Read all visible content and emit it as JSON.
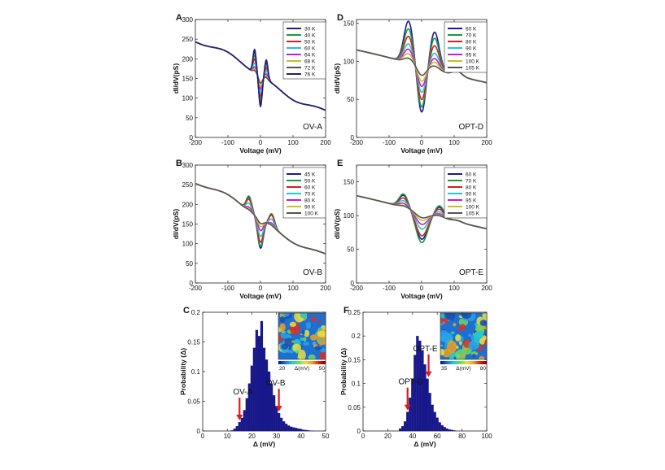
{
  "figure": {
    "title": ""
  },
  "colors": {
    "series8": [
      "#1a1aa0",
      "#1a9a3a",
      "#d81e1e",
      "#1ec8d8",
      "#c81ec8",
      "#c8c020",
      "#555555",
      "#20207a"
    ],
    "hist": "#18188a",
    "arrow": "#d81e1e"
  },
  "chart_data": [
    {
      "id": "A",
      "type": "line",
      "letter": "A",
      "name_label": "OV-A",
      "xlabel": "Voltage (mV)",
      "ylabel": "dI/dV(pS)",
      "xlim": [
        -200,
        200
      ],
      "ylim": [
        0,
        300
      ],
      "xticks": [
        "-200",
        "-100",
        "0",
        "100",
        "200"
      ],
      "yticks": [
        "0",
        "50",
        "100",
        "150",
        "200",
        "250",
        "300"
      ],
      "legend": [
        "30 K",
        "40 K",
        "50 K",
        "60 K",
        "64 K",
        "68 K",
        "72 K",
        "76 K"
      ],
      "model": {
        "y0": 262,
        "y1": 50,
        "k": 0.012,
        "wiggle": 4,
        "peakL": [
          55,
          45,
          35,
          25,
          15,
          10,
          6,
          60
        ],
        "peakR": [
          45,
          38,
          30,
          22,
          14,
          8,
          5,
          50
        ],
        "dip": [
          72,
          62,
          52,
          42,
          33,
          25,
          18,
          78
        ],
        "pw": 7,
        "pos": 18,
        "dw": 7,
        "hump": 0
      }
    },
    {
      "id": "B",
      "type": "line",
      "letter": "B",
      "name_label": "OV-B",
      "xlabel": "Voltage (mV)",
      "ylabel": "dI/dV(pS)",
      "xlim": [
        -200,
        200
      ],
      "ylim": [
        0,
        300
      ],
      "xticks": [
        "-200",
        "-100",
        "0",
        "100",
        "200"
      ],
      "yticks": [
        "0",
        "50",
        "100",
        "150",
        "200",
        "250",
        "300"
      ],
      "legend": [
        "45 K",
        "50 K",
        "60 K",
        "70 K",
        "80 K",
        "90 K",
        "100 K"
      ],
      "model": {
        "y0": 272,
        "y1": 55,
        "k": 0.012,
        "wiggle": 3,
        "peakL": [
          35,
          38,
          30,
          20,
          10,
          5,
          3
        ],
        "peakR": [
          30,
          32,
          28,
          18,
          8,
          4,
          2
        ],
        "dip": [
          75,
          70,
          60,
          45,
          30,
          20,
          12
        ],
        "pw": 12,
        "pos": 35,
        "dw": 12,
        "hump": 0
      }
    },
    {
      "id": "D",
      "type": "line",
      "letter": "D",
      "name_label": "OPT-D",
      "xlabel": "Voltage (mV)",
      "ylabel": "dI/dV(pS)",
      "xlim": [
        -200,
        200
      ],
      "ylim": [
        0,
        155
      ],
      "xticks": [
        "-200",
        "-100",
        "0",
        "100",
        "200"
      ],
      "yticks": [
        "0",
        "50",
        "100",
        "150"
      ],
      "legend": [
        "60 K",
        "70 K",
        "80 K",
        "90 K",
        "95 K",
        "100 K",
        "105 K"
      ],
      "model": {
        "y0": 140,
        "y1": 47,
        "k": 0.005,
        "wiggle": 0,
        "peakL": [
          55,
          45,
          35,
          25,
          18,
          12,
          6
        ],
        "peakR": [
          50,
          42,
          32,
          22,
          15,
          10,
          5
        ],
        "dip": [
          62,
          55,
          45,
          35,
          27,
          20,
          12
        ],
        "pw": 20,
        "pos": 40,
        "dw": 18,
        "hump": 6
      }
    },
    {
      "id": "E",
      "type": "line",
      "letter": "E",
      "name_label": "OPT-E",
      "xlabel": "Voltage (mV)",
      "ylabel": "dI/dV(pS)",
      "xlim": [
        -200,
        200
      ],
      "ylim": [
        0,
        175
      ],
      "xticks": [
        "-200",
        "-100",
        "0",
        "100",
        "200"
      ],
      "yticks": [
        "0",
        "50",
        "100",
        "150"
      ],
      "legend": [
        "60 K",
        "70 K",
        "80 K",
        "90 K",
        "95 K",
        "100 K",
        "105 K"
      ],
      "model": {
        "y0": 158,
        "y1": 52,
        "k": 0.005,
        "wiggle": 0,
        "peakL": [
          18,
          20,
          14,
          10,
          6,
          3,
          2
        ],
        "peakR": [
          15,
          17,
          12,
          8,
          5,
          3,
          2
        ],
        "dip": [
          40,
          45,
          35,
          25,
          18,
          12,
          8
        ],
        "pw": 20,
        "pos": 55,
        "dw": 25,
        "hump": 2
      }
    },
    {
      "id": "C",
      "type": "bar",
      "letter": "C",
      "xlabel": "Δ (mV)",
      "ylabel": "Probability (Δ)",
      "xlim": [
        0,
        50
      ],
      "ylim": [
        0,
        0.2
      ],
      "xticks": [
        "0",
        "10",
        "20",
        "30",
        "40",
        "50"
      ],
      "yticks": [
        "0",
        "0.05",
        "0.1",
        "0.15",
        "0.2"
      ],
      "bin_width": 1,
      "x": [
        12,
        13,
        14,
        15,
        16,
        17,
        18,
        19,
        20,
        21,
        22,
        23,
        24,
        25,
        26,
        27,
        28,
        29,
        30,
        31,
        32,
        33,
        34,
        35,
        36,
        37,
        38,
        39,
        40,
        41,
        42,
        43,
        44,
        45
      ],
      "values": [
        0.001,
        0.004,
        0.008,
        0.015,
        0.022,
        0.035,
        0.055,
        0.08,
        0.11,
        0.14,
        0.17,
        0.16,
        0.185,
        0.14,
        0.12,
        0.1,
        0.08,
        0.06,
        0.042,
        0.03,
        0.022,
        0.016,
        0.012,
        0.009,
        0.007,
        0.006,
        0.005,
        0.004,
        0.003,
        0.002,
        0.0015,
        0.001,
        0.0006,
        0.0003
      ],
      "arrows": [
        {
          "label": "OV-A",
          "x": 15
        },
        {
          "label": "OV-B",
          "x": 31
        }
      ],
      "inset": {
        "min_label": "20",
        "unit_label": "Δ(mV)",
        "max_label": "50"
      }
    },
    {
      "id": "F",
      "type": "bar",
      "letter": "F",
      "xlabel": "Δ (mV)",
      "ylabel": "Probability (Δ)",
      "xlim": [
        0,
        100
      ],
      "ylim": [
        0,
        0.25
      ],
      "xticks": [
        "0",
        "20",
        "40",
        "60",
        "80",
        "100"
      ],
      "yticks": [
        "0",
        "0.05",
        "0.1",
        "0.15",
        "0.2",
        "0.25"
      ],
      "bin_width": 2,
      "x": [
        30,
        32,
        34,
        36,
        38,
        40,
        42,
        44,
        46,
        48,
        50,
        52,
        54,
        56,
        58,
        60,
        62,
        64,
        66,
        68,
        70,
        72,
        74
      ],
      "values": [
        0.005,
        0.01,
        0.02,
        0.04,
        0.07,
        0.11,
        0.16,
        0.2,
        0.19,
        0.17,
        0.14,
        0.11,
        0.08,
        0.055,
        0.04,
        0.028,
        0.018,
        0.012,
        0.008,
        0.005,
        0.003,
        0.002,
        0.001
      ],
      "arrows": [
        {
          "label": "OPT-D",
          "x": 36
        },
        {
          "label": "OPT-E",
          "x": 53
        }
      ],
      "inset": {
        "min_label": "35",
        "unit_label": "Δ(mV)",
        "max_label": "80"
      }
    }
  ]
}
